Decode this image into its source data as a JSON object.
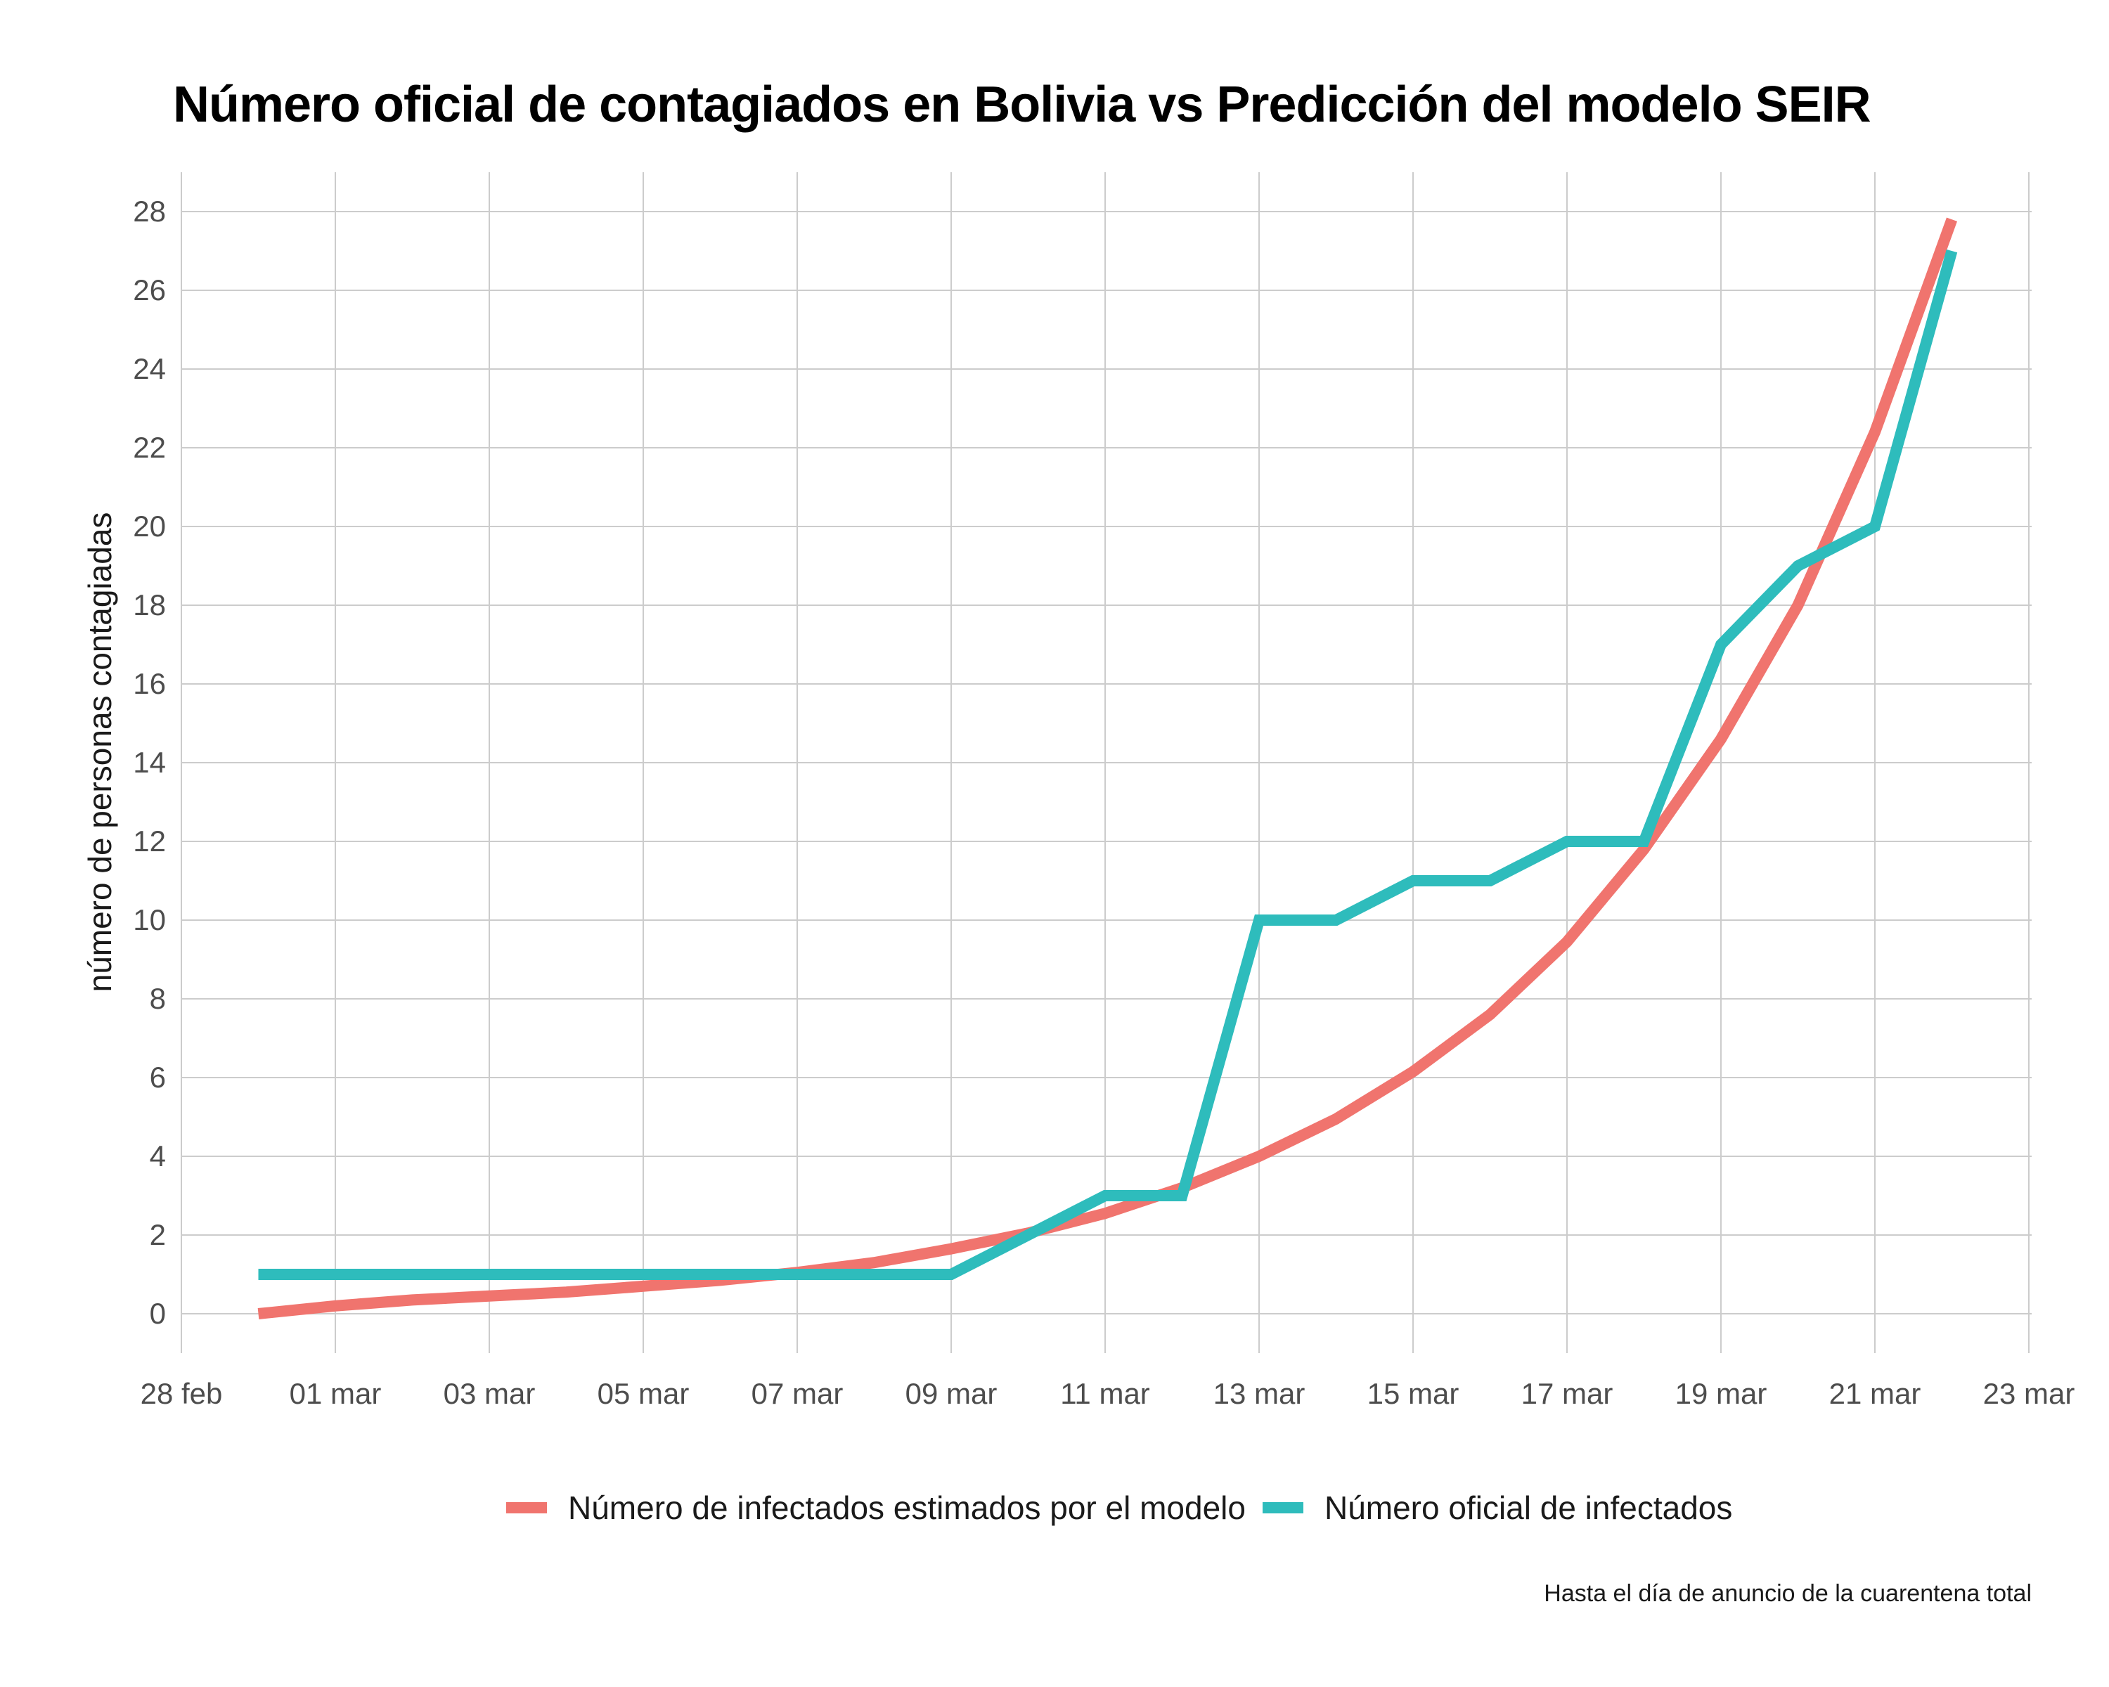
{
  "chart_data": {
    "type": "line",
    "title": "Número oficial de contagiados en Bolivia vs Predicción del modelo SEIR",
    "xlabel": "",
    "ylabel": "número de personas contagiadas",
    "caption": "Hasta el día de anuncio de la cuarentena total",
    "x_tick_labels": [
      "28 feb",
      "01 mar",
      "03 mar",
      "05 mar",
      "07 mar",
      "09 mar",
      "11 mar",
      "13 mar",
      "15 mar",
      "17 mar",
      "19 mar",
      "21 mar",
      "23 mar"
    ],
    "y_tick_labels": [
      "0",
      "2",
      "4",
      "6",
      "8",
      "10",
      "12",
      "14",
      "16",
      "18",
      "20",
      "22",
      "24",
      "26",
      "28"
    ],
    "ylim": [
      -1,
      29
    ],
    "grid": true,
    "legend_position": "bottom",
    "x": [
      "29 feb",
      "01 mar",
      "02 mar",
      "03 mar",
      "04 mar",
      "05 mar",
      "06 mar",
      "07 mar",
      "08 mar",
      "09 mar",
      "10 mar",
      "11 mar",
      "12 mar",
      "13 mar",
      "14 mar",
      "15 mar",
      "16 mar",
      "17 mar",
      "18 mar",
      "19 mar",
      "20 mar",
      "21 mar",
      "22 mar"
    ],
    "series": [
      {
        "name": "Número de infectados estimados por el modelo",
        "color": "#F0746E",
        "values": [
          0,
          0.2,
          0.35,
          0.45,
          0.55,
          0.7,
          0.85,
          1.05,
          1.3,
          1.65,
          2.05,
          2.55,
          3.2,
          4.0,
          4.95,
          6.15,
          7.6,
          9.45,
          11.8,
          14.6,
          18.0,
          22.4,
          27.8
        ]
      },
      {
        "name": "Número oficial de infectados",
        "color": "#2EBCBC",
        "values": [
          1,
          1,
          1,
          1,
          1,
          1,
          1,
          1,
          1,
          1,
          2,
          3,
          3,
          10,
          10,
          11,
          11,
          12,
          12,
          17,
          19,
          20,
          27
        ]
      }
    ]
  }
}
